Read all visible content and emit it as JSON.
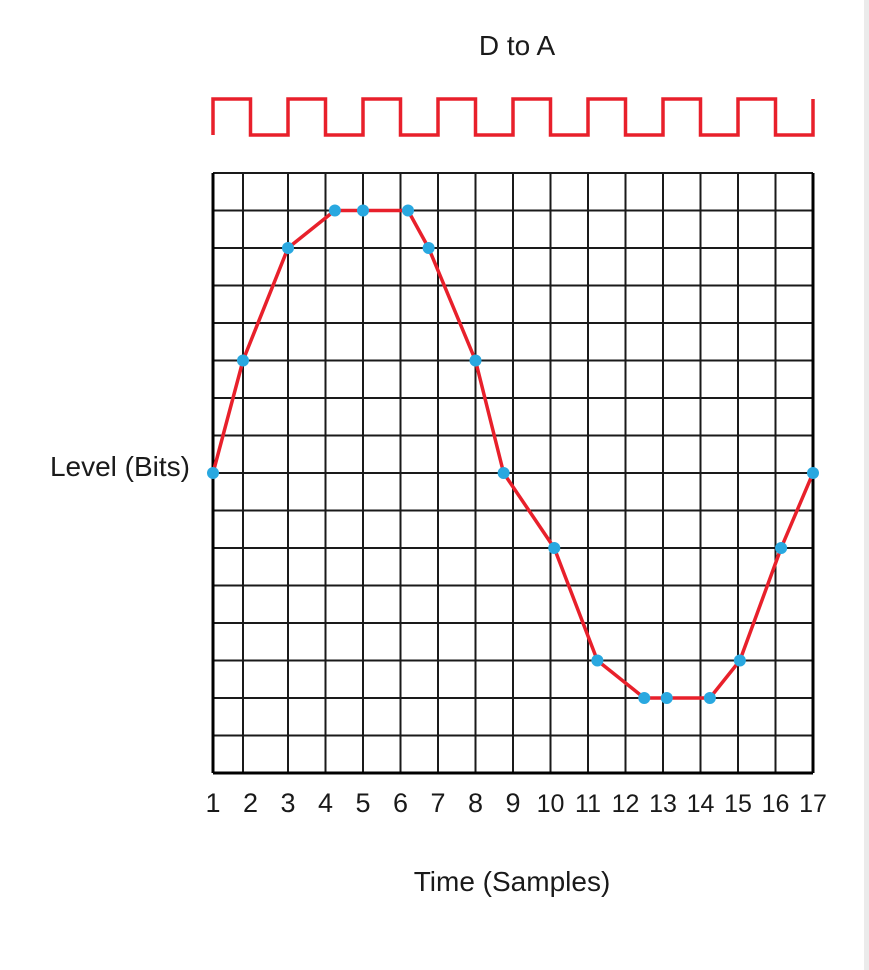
{
  "chart_data": {
    "type": "line",
    "title": "D to A",
    "xlabel": "Time (Samples)",
    "ylabel": "Level (Bits)",
    "x_tick_labels": [
      "1",
      "2",
      "3",
      "4",
      "5",
      "6",
      "7",
      "8",
      "9",
      "10",
      "11",
      "12",
      "13",
      "14",
      "15",
      "16",
      "17"
    ],
    "grid": true,
    "clock_signal": {
      "cycles": 8,
      "color": "#e8202b"
    },
    "series": [
      {
        "x": [
          1,
          1.8,
          3,
          4.25,
          5,
          6.2,
          6.75,
          8,
          8.75,
          10.1,
          11.25,
          12.5,
          13.1,
          14.25,
          15.05,
          16.15,
          17
        ],
        "y": [
          8,
          11,
          14,
          15,
          15,
          15,
          14,
          11,
          8,
          6,
          3,
          2,
          2,
          2,
          3,
          6,
          8
        ],
        "color": "#e8202b",
        "marker_color": "#29a8e0"
      }
    ],
    "xlim": [
      1,
      17
    ],
    "ylim": [
      0,
      16
    ]
  }
}
